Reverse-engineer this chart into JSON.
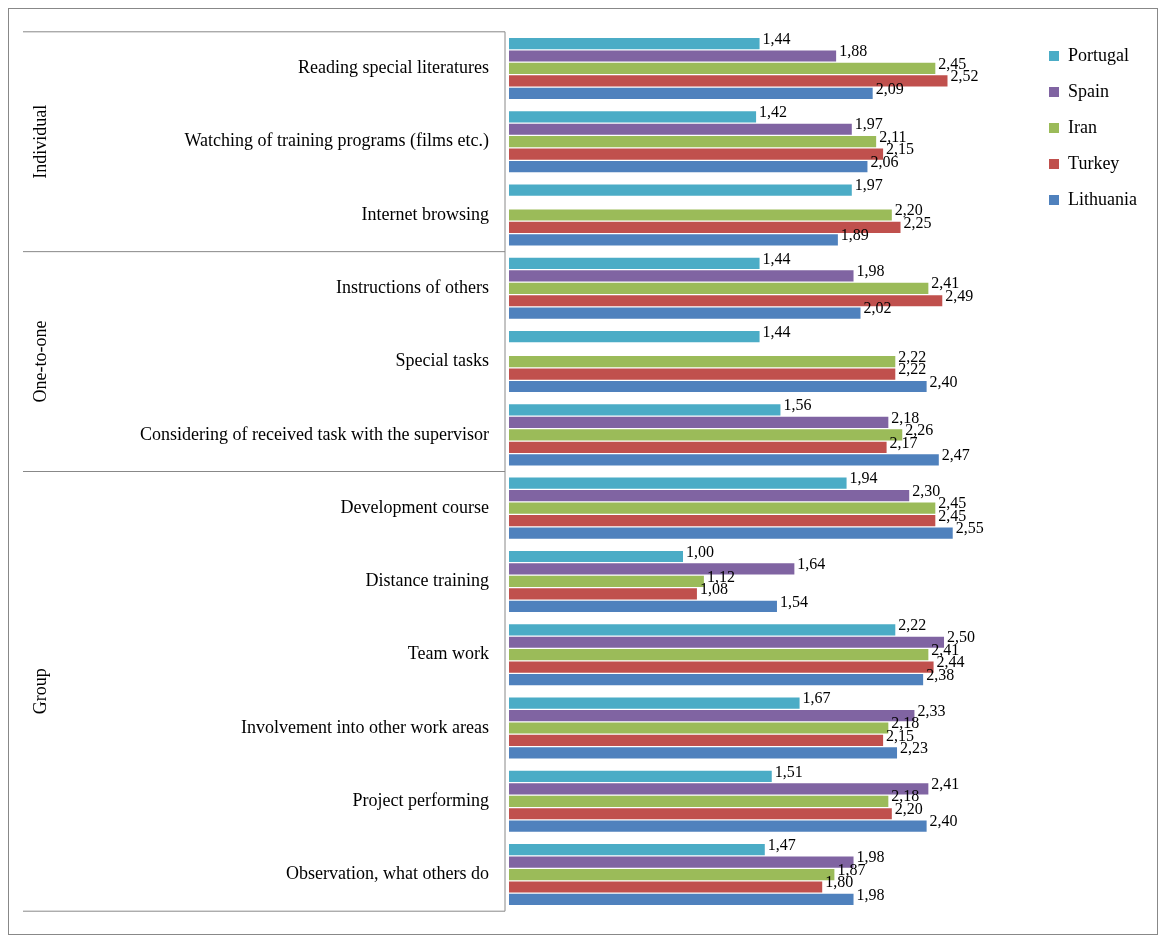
{
  "chart_data": {
    "type": "bar",
    "orientation": "horizontal",
    "legend": "top right",
    "categories": [
      "Reading special literatures",
      "Watching of training programs (films etc.)",
      "Internet browsing",
      "Instructions of others",
      "Special tasks",
      "Considering of received task with the supervisor",
      "Development course",
      "Distance training",
      "Team work",
      "Involvement into other work areas",
      "Project performing",
      "Observation, what others do"
    ],
    "series": [
      {
        "name": "Portugal",
        "color": "#4bacc6",
        "values": [
          1.44,
          1.42,
          1.97,
          1.44,
          1.44,
          1.56,
          1.94,
          1.0,
          2.22,
          1.67,
          1.51,
          1.47
        ],
        "value_labels": [
          "1,44",
          "1,42",
          "1,97",
          "1,44",
          "1,44",
          "1,56",
          "1,94",
          "1,00",
          "2,22",
          "1,67",
          "1,51",
          "1,47"
        ]
      },
      {
        "name": "Spain",
        "color": "#8064a2",
        "values": [
          1.88,
          1.97,
          null,
          1.98,
          null,
          2.18,
          2.3,
          1.64,
          2.5,
          2.33,
          2.41,
          1.98
        ],
        "value_labels": [
          "1,88",
          "1,97",
          null,
          "1,98",
          null,
          "2,18",
          "2,30",
          "1,64",
          "2,50",
          "2,33",
          "2,41",
          "1,98"
        ]
      },
      {
        "name": "Iran",
        "color": "#9bbb59",
        "values": [
          2.45,
          2.11,
          2.2,
          2.41,
          2.22,
          2.26,
          2.45,
          1.12,
          2.41,
          2.18,
          2.18,
          1.87
        ],
        "value_labels": [
          "2,45",
          "2,11",
          "2,20",
          "2,41",
          "2,22",
          "2,26",
          "2,45",
          "1,12",
          "2,41",
          "2,18",
          "2,18",
          "1,87"
        ]
      },
      {
        "name": "Turkey",
        "color": "#c0504d",
        "values": [
          2.52,
          2.15,
          2.25,
          2.49,
          2.22,
          2.17,
          2.45,
          1.08,
          2.44,
          2.15,
          2.2,
          1.8
        ],
        "value_labels": [
          "2,52",
          "2,15",
          "2,25",
          "2,49",
          "2,22",
          "2,17",
          "2,45",
          "1,08",
          "2,44",
          "2,15",
          "2,20",
          "1,80"
        ]
      },
      {
        "name": "Lithuania",
        "color": "#4f81bd",
        "values": [
          2.09,
          2.06,
          1.89,
          2.02,
          2.4,
          2.47,
          2.55,
          1.54,
          2.38,
          2.23,
          2.4,
          1.98
        ],
        "value_labels": [
          "2,09",
          "2,06",
          "1,89",
          "2,02",
          "2,40",
          "2,47",
          "2,55",
          "1,54",
          "2,38",
          "2,23",
          "2,40",
          "1,98"
        ]
      }
    ],
    "tick_labels": "y",
    "annotations": [
      "Individual",
      "One-to-one",
      "Group"
    ]
  }
}
